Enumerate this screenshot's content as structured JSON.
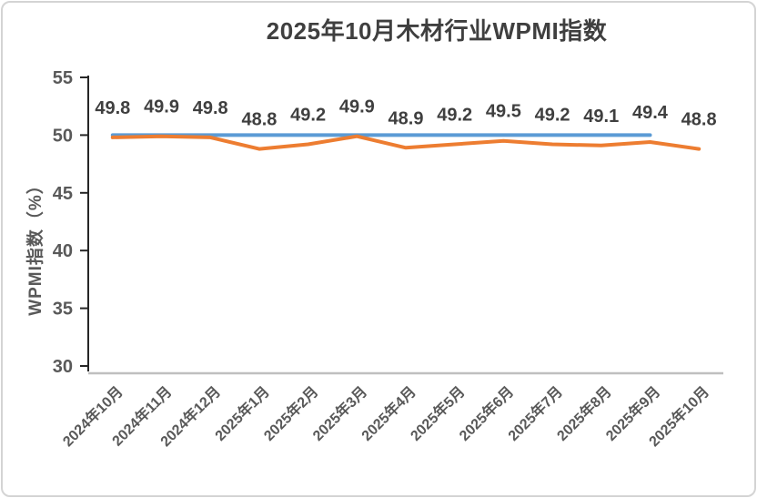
{
  "page": {
    "background": "#ffffff",
    "frame_border_color": "#d4d4d4"
  },
  "chart_data": {
    "type": "line",
    "title": "2025年10月木材行业WPMI指数",
    "xlabel": "",
    "ylabel": "WPMI指数（%）",
    "ylim": [
      30,
      55
    ],
    "yticks": [
      30,
      35,
      40,
      45,
      50,
      55
    ],
    "grid": false,
    "legend_position": "none",
    "categories": [
      "2024年10月",
      "2024年11月",
      "2024年12月",
      "2025年1月",
      "2025年2月",
      "2025年3月",
      "2025年4月",
      "2025年5月",
      "2025年6月",
      "2025年7月",
      "2025年8月",
      "2025年9月",
      "2025年10月"
    ],
    "series": [
      {
        "id": "reference_line_50",
        "color": "#5b9bd5",
        "show_labels": false,
        "values": [
          50,
          50,
          50,
          50,
          50,
          50,
          50,
          50,
          50,
          50,
          50,
          50,
          null
        ]
      },
      {
        "id": "wpmi_index",
        "color": "#ed7d31",
        "show_labels": true,
        "values": [
          49.8,
          49.9,
          49.8,
          48.8,
          49.2,
          49.9,
          48.9,
          49.2,
          49.5,
          49.2,
          49.1,
          49.4,
          48.8
        ]
      }
    ],
    "colors": {
      "axis_line": "#262626",
      "x_axis_line": "#bfbfbf",
      "tick_label": "#595959",
      "data_label": "#3f3f3f",
      "title": "#3f3f3f"
    }
  }
}
